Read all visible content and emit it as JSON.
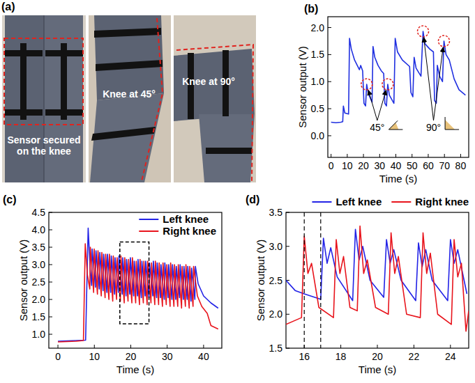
{
  "photos": {
    "title": "(a)",
    "captions": [
      "Sensor secured on the knee",
      "Knee at 45°",
      "Knee at 90°"
    ]
  },
  "chart_data": [
    {
      "type": "line",
      "title": "(b)",
      "xlabel": "Time (s)",
      "ylabel": "Sensor output (V)",
      "xlim": [
        -2,
        85
      ],
      "ylim": [
        -0.4,
        2.2
      ],
      "xticks": [
        0,
        10,
        20,
        30,
        40,
        50,
        60,
        70,
        80
      ],
      "yticks": [
        {
          "value": 0,
          "label": "0.0"
        },
        0.5,
        {
          "value": 1,
          "label": "1.0"
        },
        1.5,
        {
          "value": 2,
          "label": "2.0"
        }
      ],
      "grid": false,
      "series": [
        {
          "color": "#1f2fe0",
          "x": [
            0,
            3,
            6,
            7.2,
            7.6,
            8.5,
            10.8,
            11.4,
            12.5,
            14.5,
            17.5,
            18.3,
            19.5,
            20.3,
            21.3,
            22,
            23,
            25.3,
            25.9,
            27,
            29,
            31,
            32.5,
            33.2,
            34.2,
            35,
            36,
            38.8,
            39.6,
            41,
            44,
            48.5,
            49.3,
            50.5,
            51.3,
            52.5,
            55.5,
            56.8,
            58,
            61,
            63.2,
            63.9,
            65,
            65.6,
            67,
            68.8,
            69.7,
            71,
            73,
            76,
            79,
            83
          ],
          "values": [
            0.25,
            0.24,
            0.25,
            0.26,
            0.55,
            0.42,
            0.4,
            1.8,
            1.6,
            1.4,
            1.22,
            1.3,
            1.2,
            0.6,
            0.55,
            0.95,
            0.78,
            0.62,
            1.65,
            1.45,
            1.3,
            1.2,
            1.15,
            0.6,
            0.55,
            0.95,
            0.75,
            0.6,
            1.8,
            1.55,
            1.4,
            1.28,
            0.8,
            0.72,
            1.45,
            1.25,
            1.1,
            1.93,
            1.7,
            1.6,
            1.55,
            0.65,
            0.6,
            1.3,
            1.1,
            1.0,
            1.75,
            1.5,
            1.4,
            1.05,
            0.85,
            0.75
          ]
        }
      ],
      "annotations": [
        {
          "text": "45°",
          "x": [
            22,
            35
          ],
          "y": [
            0.95,
            0.95
          ]
        },
        {
          "text": "90°",
          "x": [
            56.8,
            69.7
          ],
          "y": [
            1.93,
            1.75
          ]
        }
      ]
    },
    {
      "type": "line",
      "title": "(c)",
      "xlabel": "Time (s)",
      "ylabel": "Sensor output (V)",
      "xlim": [
        -2.5,
        45
      ],
      "ylim": [
        0.6,
        4.5
      ],
      "xticks": [
        0,
        10,
        20,
        30,
        40
      ],
      "yticks": [
        {
          "value": 1,
          "label": "1.0"
        },
        1.5,
        {
          "value": 2,
          "label": "2.0"
        },
        2.5,
        {
          "value": 3,
          "label": "3.0"
        },
        3.5,
        {
          "value": 4,
          "label": "4.0"
        },
        4.5
      ],
      "grid": false,
      "legend": "upper right",
      "series": [
        {
          "name": "Left knee",
          "color": "#2323e6",
          "x": [
            0,
            5,
            7.6,
            8.3,
            8.9,
            9.25,
            9.4,
            10.3,
            10.45,
            11.35,
            11.5,
            12.4,
            12.55,
            13.45,
            13.6,
            14.5,
            14.65,
            15.55,
            15.7,
            16.6,
            16.75,
            17.65,
            17.8,
            18.7,
            18.85,
            19.75,
            19.9,
            20.8,
            20.95,
            21.85,
            22,
            22.9,
            23.05,
            23.95,
            24.1,
            25,
            25.15,
            26.05,
            26.2,
            27.1,
            27.25,
            28.15,
            28.3,
            29.2,
            29.35,
            30.25,
            30.4,
            31.3,
            31.45,
            32.35,
            32.5,
            33.4,
            33.55,
            34.45,
            34.6,
            35.5,
            35.65,
            36.55,
            36.7,
            37.6,
            37.75,
            38.5,
            40,
            42,
            44
          ],
          "values": [
            0.8,
            0.82,
            0.83,
            4.05,
            2.8,
            2.4,
            3.45,
            2.35,
            3.4,
            2.3,
            3.35,
            2.25,
            3.3,
            2.2,
            3.3,
            2.2,
            3.25,
            2.15,
            3.2,
            2.2,
            3.25,
            2.15,
            3.2,
            2.1,
            3.15,
            2.15,
            3.2,
            2.1,
            3.1,
            2.1,
            3.15,
            2.05,
            3.1,
            2.1,
            3.1,
            2.05,
            3.05,
            2.1,
            3.1,
            2.05,
            3.05,
            2.05,
            3.0,
            2.0,
            3.05,
            2.05,
            3.0,
            2.0,
            3.0,
            2.0,
            2.95,
            2.05,
            3.0,
            2.0,
            2.95,
            2.0,
            2.95,
            1.95,
            2.9,
            2.0,
            2.95,
            2.45,
            2.1,
            1.9,
            1.75
          ]
        },
        {
          "name": "Right knee",
          "color": "#e8141c",
          "x": [
            0,
            5,
            7.0,
            7.5,
            8.1,
            8.75,
            8.9,
            9.8,
            9.95,
            10.85,
            11,
            11.9,
            12.05,
            12.95,
            13.1,
            14,
            14.15,
            15.05,
            15.2,
            16.1,
            16.25,
            17.15,
            17.3,
            18.2,
            18.35,
            19.25,
            19.4,
            20.3,
            20.45,
            21.35,
            21.5,
            22.4,
            22.55,
            23.45,
            23.6,
            24.5,
            24.65,
            25.55,
            25.7,
            26.6,
            26.75,
            27.65,
            27.8,
            28.7,
            28.85,
            29.75,
            29.9,
            30.8,
            30.95,
            31.85,
            32,
            32.9,
            33.05,
            33.95,
            34.1,
            35,
            35.15,
            36.05,
            36.2,
            37.1,
            37.25,
            38.3,
            39.5,
            41,
            42,
            43,
            44
          ],
          "values": [
            0.78,
            0.8,
            0.82,
            3.6,
            2.7,
            2.3,
            3.5,
            2.2,
            3.45,
            2.15,
            3.4,
            2.1,
            3.35,
            2.05,
            3.3,
            2.0,
            3.3,
            1.95,
            3.25,
            2.0,
            3.2,
            1.95,
            3.25,
            1.9,
            3.2,
            1.95,
            3.15,
            1.9,
            3.2,
            1.9,
            3.1,
            1.85,
            3.15,
            1.9,
            3.1,
            1.85,
            3.1,
            1.9,
            3.05,
            1.85,
            3.1,
            1.85,
            3.05,
            1.8,
            3.05,
            1.85,
            3.0,
            1.8,
            3.05,
            1.8,
            3.0,
            1.8,
            3.0,
            1.75,
            2.95,
            1.8,
            3.0,
            1.75,
            2.95,
            1.8,
            2.95,
            2.1,
            1.8,
            1.6,
            1.25,
            1.2,
            1.15
          ]
        }
      ],
      "annotations": [
        {
          "x": [
            17,
            25
          ],
          "y": [
            1.3,
            3.65
          ]
        }
      ]
    },
    {
      "type": "line",
      "title": "(d)",
      "xlabel": "Time (s)",
      "ylabel": "Sensor output (V)",
      "xlim": [
        15,
        25
      ],
      "ylim": [
        1.5,
        3.5
      ],
      "xticks": [
        16,
        18,
        20,
        22,
        24
      ],
      "yticks": [
        1.5,
        {
          "value": 2,
          "label": "2.0"
        },
        2.5,
        {
          "value": 3,
          "label": "3.0"
        },
        3.5
      ],
      "grid": false,
      "legend": "top",
      "series": [
        {
          "name": "Left knee",
          "color": "#2323e6",
          "x": [
            15,
            15.5,
            16,
            16.9,
            17.05,
            17.25,
            17.45,
            17.8,
            18.65,
            18.8,
            19,
            19.2,
            19.6,
            20.35,
            20.5,
            20.7,
            20.9,
            21.3,
            22.1,
            22.25,
            22.45,
            22.65,
            23,
            23.85,
            24,
            24.2,
            24.4,
            24.9
          ],
          "values": [
            2.5,
            2.35,
            2.3,
            2.22,
            3.12,
            2.75,
            2.98,
            2.55,
            2.2,
            3.25,
            2.8,
            3.0,
            2.5,
            2.25,
            3.1,
            2.75,
            2.95,
            2.5,
            2.2,
            3.05,
            2.7,
            2.95,
            2.5,
            2.2,
            3.1,
            2.75,
            2.95,
            2.3
          ]
        },
        {
          "name": "Right knee",
          "color": "#e8141c",
          "x": [
            15,
            15.85,
            16,
            16.2,
            16.4,
            16.8,
            17.6,
            17.75,
            17.95,
            18.15,
            18.5,
            18.9,
            19.05,
            19.25,
            19.45,
            19.9,
            20.6,
            20.75,
            20.95,
            21.15,
            21.6,
            22.35,
            22.5,
            22.7,
            22.9,
            23.3,
            24.05,
            24.2,
            24.4,
            24.6,
            24.85,
            25
          ],
          "values": [
            1.85,
            1.95,
            3.15,
            2.6,
            2.75,
            2.1,
            1.95,
            3.1,
            2.6,
            2.85,
            2.1,
            2.05,
            3.3,
            2.6,
            2.8,
            2.1,
            2.0,
            3.2,
            2.6,
            2.85,
            2.0,
            1.95,
            3.2,
            2.6,
            2.9,
            2.0,
            1.85,
            3.1,
            2.55,
            2.75,
            1.75,
            2.05
          ]
        }
      ],
      "annotations": [
        {
          "x": [
            16,
            16.9
          ]
        }
      ]
    }
  ]
}
